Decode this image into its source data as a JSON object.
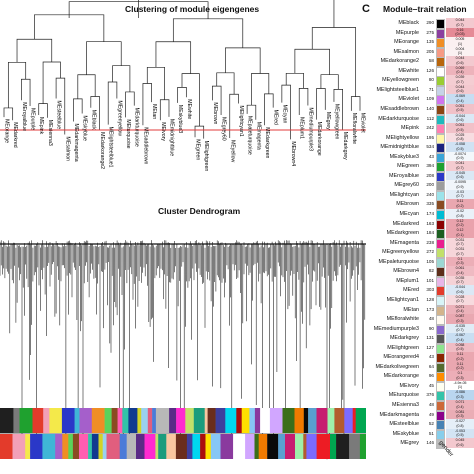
{
  "panel_a": {
    "title": "Clustering of module eigengenes",
    "leaves": [
      "MEorange",
      "MEdarkred",
      "MEroyalblue",
      "MEpurple",
      "MEpink",
      "MEsienna3",
      "MEsteelblue",
      "MEsalmon",
      "MEdarkmagenta",
      "MEskyblue",
      "MEblack",
      "MEdarkorange2",
      "MElightsteelblue1",
      "MEgreenyellow",
      "MEturquoise",
      "MEdarkturquoise",
      "MEsaddlebrown",
      "MEtan",
      "MEivory",
      "MEmidnightblue",
      "MEskyblue3",
      "MEwhite",
      "MEgreen",
      "MElightgreen",
      "MEbrown",
      "MEgrey60",
      "MEyellow",
      "MElightcyan1",
      "MEpaleturquoise",
      "MEmagenta",
      "MEdarkgreen",
      "MEred",
      "MEcyan",
      "MEbrown4",
      "MEplum1",
      "MEmediumpurple3",
      "MEdarkorange",
      "MEgrey",
      "MEyellowgreen",
      "MEdarkgrey",
      "MEfloralwhite",
      "MEviolet"
    ]
  },
  "panel_b": {
    "title": "Cluster Dendrogram",
    "module_colors": [
      "#1f1f1f",
      "#7a7a7a",
      "#1fa12f",
      "#e33b2b",
      "#f2a0b8",
      "#f4e94a",
      "#2a38c8",
      "#3fb6d6",
      "#a55fcb",
      "#f08e25",
      "#5bd35b",
      "#8a4b22",
      "#ff5db1",
      "#33c3a8",
      "#123a8f",
      "#d3d327",
      "#9ad2ee",
      "#e15e7e",
      "#4b7bd8",
      "#b8b8b8",
      "#5a2b86",
      "#ff2ad0",
      "#c2e06a",
      "#1b9c7d",
      "#f9c6a0",
      "#6a2d1d",
      "#3e3e9e",
      "#00d7f0",
      "#ab0d0d",
      "#ffe000",
      "#87c7f6",
      "#8a3a9e",
      "#ffffff",
      "#d1a6ff",
      "#3b6e1a",
      "#f07a00",
      "#0a0a0a",
      "#5aa0d0",
      "#c71d70",
      "#9fefaa",
      "#b35b2d",
      "#7b6bff",
      "#ed1c24",
      "#00a650"
    ]
  },
  "panel_c": {
    "letter": "C",
    "title": "Module–trait relation",
    "trait": "gender",
    "rows": [
      {
        "name": "MEblack",
        "size": "290",
        "color": "#000000",
        "r": "0.044",
        "p": "(0.7)",
        "fill": "#f3c9cf"
      },
      {
        "name": "MEpurple",
        "size": "275",
        "color": "#8b3f9f",
        "r": "0.16",
        "p": "(0.03)",
        "fill": "#e58a96"
      },
      {
        "name": "MEorange",
        "size": "135",
        "color": "#f08e25",
        "r": "0.005",
        "p": "(1)",
        "fill": "#fbf0f1"
      },
      {
        "name": "MEsalmon",
        "size": "205",
        "color": "#f79a84",
        "r": "0.004",
        "p": "(1)",
        "fill": "#fbf1f2"
      },
      {
        "name": "MEdarkorange2",
        "size": "58",
        "color": "#b8650c",
        "r": "0.044",
        "p": "(0.6)",
        "fill": "#f3c9cf"
      },
      {
        "name": "MEwhite",
        "size": "126",
        "color": "#ffffff",
        "r": "0.069",
        "p": "(0.4)",
        "fill": "#edb3bb"
      },
      {
        "name": "MEyellowgreen",
        "size": "80",
        "color": "#9acd32",
        "r": "0.039",
        "p": "(0.7)",
        "fill": "#f4cdd2"
      },
      {
        "name": "MElightsteelblue1",
        "size": "71",
        "color": "#c6d3e8",
        "r": "0.044",
        "p": "(0.6)",
        "fill": "#f3c9cf"
      },
      {
        "name": "MEviolet",
        "size": "109",
        "color": "#d074f0",
        "r": "-0.069",
        "p": "(0.4)",
        "fill": "#c7ddf2"
      },
      {
        "name": "MEsaddlebrown",
        "size": "140",
        "color": "#8b4513",
        "r": "0.051",
        "p": "(0.5)",
        "fill": "#f1c1c8"
      },
      {
        "name": "MEdarkturquoise",
        "size": "112",
        "color": "#1fb9bd",
        "r": "-0.044",
        "p": "(0.6)",
        "fill": "#dbe8f5"
      },
      {
        "name": "MEpink",
        "size": "242",
        "color": "#ff7fb1",
        "r": "0.051",
        "p": "(0.5)",
        "fill": "#f1c1c8"
      },
      {
        "name": "MElightyellow",
        "size": "195",
        "color": "#fff7a8",
        "r": "0.025",
        "p": "(0.8)",
        "fill": "#f7dde1"
      },
      {
        "name": "MEmidnightblue",
        "size": "534",
        "color": "#1a237e",
        "r": "-0.058",
        "p": "(0.5)",
        "fill": "#d0e2f3"
      },
      {
        "name": "MEskyblue3",
        "size": "43",
        "color": "#3aa5d8",
        "r": "-0.0074",
        "p": "(0.9)",
        "fill": "#f3f7fb"
      },
      {
        "name": "MEgreen",
        "size": "394",
        "color": "#1fa12f",
        "r": "0.041",
        "p": "(0.7)",
        "fill": "#f4cbd0"
      },
      {
        "name": "MEroyalblue",
        "size": "208",
        "color": "#2a38c8",
        "r": "-0.045",
        "p": "(0.6)",
        "fill": "#dae8f5"
      },
      {
        "name": "MEgrey60",
        "size": "200",
        "color": "#9d9d9d",
        "r": "-0.0095",
        "p": "(0.9)",
        "fill": "#f1f5fa"
      },
      {
        "name": "MElightcyan",
        "size": "240",
        "color": "#9be3ea",
        "r": "-0.03",
        "p": "(0.7)",
        "fill": "#e3edf7"
      },
      {
        "name": "MEbrown",
        "size": "335",
        "color": "#8a4b22",
        "r": "0.11",
        "p": "(0.2)",
        "fill": "#eaa7b0"
      },
      {
        "name": "MEcyan",
        "size": "174",
        "color": "#00bcd4",
        "r": "-0.02",
        "p": "(0.8)",
        "fill": "#eaf1f8"
      },
      {
        "name": "MEdarkred",
        "size": "163",
        "color": "#8b0000",
        "r": "0.12",
        "p": "(0.2)",
        "fill": "#e9a2ac"
      },
      {
        "name": "MEdarkgreen",
        "size": "184",
        "color": "#1b5e20",
        "r": "0.12",
        "p": "(0.1)",
        "fill": "#e9a2ac"
      },
      {
        "name": "MEmagenta",
        "size": "238",
        "color": "#e91e8f",
        "r": "0.031",
        "p": "(0.7)",
        "fill": "#f6d6da"
      },
      {
        "name": "MEgreenyellow",
        "size": "272",
        "color": "#c2e06a",
        "r": "0.031",
        "p": "(0.7)",
        "fill": "#f6d6da"
      },
      {
        "name": "MEpaleturquoise",
        "size": "105",
        "color": "#9cd8d3",
        "r": "0.1",
        "p": "(0.3)",
        "fill": "#ecaeb7"
      },
      {
        "name": "MEbrown4",
        "size": "82",
        "color": "#5d2e1a",
        "r": "0.061",
        "p": "(0.4)",
        "fill": "#efbac2"
      },
      {
        "name": "MEplum1",
        "size": "101",
        "color": "#e8b6e8",
        "r": "0.035",
        "p": "(0.7)",
        "fill": "#f5d2d6"
      },
      {
        "name": "MEred",
        "size": "303",
        "color": "#e33b2b",
        "r": "-0.044",
        "p": "(0.6)",
        "fill": "#dbe8f5"
      },
      {
        "name": "MElightcyan1",
        "size": "128",
        "color": "#d8f4f7",
        "r": "0.028",
        "p": "(0.7)",
        "fill": "#f7dade"
      },
      {
        "name": "MEtan",
        "size": "173",
        "color": "#d2b48c",
        "r": "0.071",
        "p": "(0.4)",
        "fill": "#ecb2ba"
      },
      {
        "name": "MEfloralwhite",
        "size": "48",
        "color": "#fffaf0",
        "r": "0.087",
        "p": "(0.3)",
        "fill": "#e9a8b1"
      },
      {
        "name": "MEmediumpurple3",
        "size": "90",
        "color": "#8968cd",
        "r": "-0.035",
        "p": "(0.7)",
        "fill": "#e0ecf6"
      },
      {
        "name": "MEdarkgrey",
        "size": "131",
        "color": "#555555",
        "r": "-0.067",
        "p": "(0.4)",
        "fill": "#c8def2"
      },
      {
        "name": "MElightgreen",
        "size": "127",
        "color": "#8ee58e",
        "r": "0.058",
        "p": "(0.5)",
        "fill": "#f0bcc4"
      },
      {
        "name": "MEorangered4",
        "size": "43",
        "color": "#8b2500",
        "r": "0.11",
        "p": "(0.2)",
        "fill": "#eaa7b0"
      },
      {
        "name": "MEdarkolivegreen",
        "size": "64",
        "color": "#556b2f",
        "r": "0.11",
        "p": "(0.2)",
        "fill": "#eaa7b0"
      },
      {
        "name": "MEdarkorange",
        "size": "96",
        "color": "#ff8c00",
        "r": "0.1",
        "p": "(0.3)",
        "fill": "#ecaeb7"
      },
      {
        "name": "MEivory",
        "size": "45",
        "color": "#fffff0",
        "r": "-4.9e-05",
        "p": "(1)",
        "fill": "#ffffff"
      },
      {
        "name": "MEturquoise",
        "size": "376",
        "color": "#33c3a8",
        "r": "-0.086",
        "p": "(0.3)",
        "fill": "#bad6ef"
      },
      {
        "name": "MEsienna3",
        "size": "48",
        "color": "#cd6839",
        "r": "0.071",
        "p": "(0.4)",
        "fill": "#ecb2ba"
      },
      {
        "name": "MEdarkmagenta",
        "size": "49",
        "color": "#8b008b",
        "r": "0.081",
        "p": "(0.3)",
        "fill": "#eaadb5"
      },
      {
        "name": "MEsteelblue",
        "size": "52",
        "color": "#4682b4",
        "r": "-0.027",
        "p": "(0.8)",
        "fill": "#e5eff8"
      },
      {
        "name": "MEskyblue",
        "size": "51",
        "color": "#87ceeb",
        "r": "-0.053",
        "p": "(0.5)",
        "fill": "#d3e4f4"
      },
      {
        "name": "MEgrey",
        "size": "146",
        "color": "#bdbdbd",
        "r": "0.045",
        "p": "(0.6)",
        "fill": "#f3c8ce"
      }
    ]
  }
}
